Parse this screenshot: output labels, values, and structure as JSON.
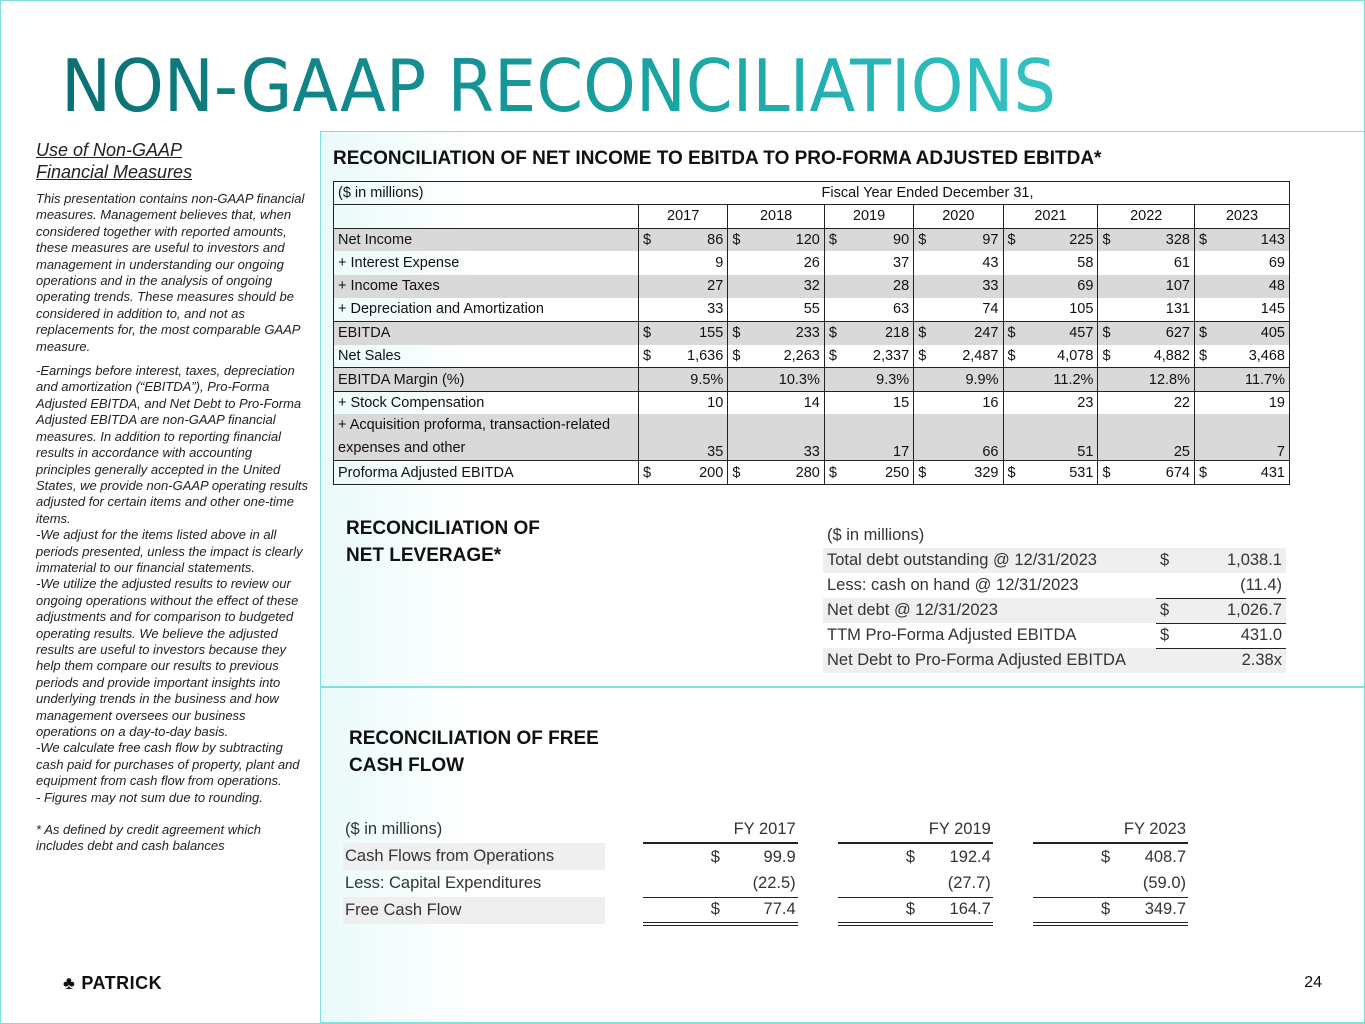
{
  "title": "NON-GAAP RECONCILIATIONS",
  "left": {
    "heading_1": "Use of Non-GAAP",
    "heading_2": "Financial Measures",
    "para1": "This presentation contains non-GAAP financial measures. Management believes that, when considered together with reported amounts, these measures are useful to investors and management in understanding our ongoing operations and in the analysis of ongoing operating trends. These measures should be considered in addition to, and not as replacements for, the most comparable GAAP measure.",
    "para2": "-Earnings before interest, taxes, depreciation and amortization (“EBITDA”), Pro-Forma Adjusted EBITDA, and Net Debt to Pro-Forma Adjusted EBITDA are non-GAAP financial measures. In addition to reporting financial results in accordance with accounting principles generally accepted in the United States, we provide non-GAAP operating results adjusted for certain items and other one-time items.",
    "para3": "-We adjust for the items listed above in all periods presented, unless the impact is clearly immaterial to our financial statements.",
    "para4": "-We utilize the adjusted results to review our ongoing operations without the effect of these adjustments and for comparison to budgeted operating results. We believe the adjusted results are useful to investors because they help them compare our results to previous periods and provide important insights into underlying trends in the business and how management oversees our business operations on a day-to-day basis.",
    "para5": "-We calculate free cash flow by subtracting cash paid for purchases of property, plant and equipment from cash flow from operations.",
    "para6": "- Figures may not sum due to rounding.",
    "para7": "* As defined by credit agreement which includes debt and cash balances"
  },
  "ebitda": {
    "title": "RECONCILIATION OF NET INCOME TO EBITDA TO PRO-FORMA ADJUSTED EBITDA*",
    "units": "($ in millions)",
    "period": "Fiscal Year Ended December 31,",
    "years": [
      "2017",
      "2018",
      "2019",
      "2020",
      "2021",
      "2022",
      "2023"
    ],
    "rows": [
      {
        "label": "Net Income",
        "dollar": true,
        "values": [
          "86",
          "120",
          "90",
          "97",
          "225",
          "328",
          "143"
        ]
      },
      {
        "label": "+ Interest Expense",
        "values": [
          "9",
          "26",
          "37",
          "43",
          "58",
          "61",
          "69"
        ]
      },
      {
        "label": "+ Income Taxes",
        "values": [
          "27",
          "32",
          "28",
          "33",
          "69",
          "107",
          "48"
        ]
      },
      {
        "label": "+ Depreciation and Amortization",
        "values": [
          "33",
          "55",
          "63",
          "74",
          "105",
          "131",
          "145"
        ]
      },
      {
        "label": "EBITDA",
        "dollar": true,
        "values": [
          "155",
          "233",
          "218",
          "247",
          "457",
          "627",
          "405"
        ]
      },
      {
        "label": "Net Sales",
        "dollar": true,
        "values": [
          "1,636",
          "2,263",
          "2,337",
          "2,487",
          "4,078",
          "4,882",
          "3,468"
        ]
      },
      {
        "label": "EBITDA Margin (%)",
        "values": [
          "9.5%",
          "10.3%",
          "9.3%",
          "9.9%",
          "11.2%",
          "12.8%",
          "11.7%"
        ]
      },
      {
        "label": "+ Stock Compensation",
        "values": [
          "10",
          "14",
          "15",
          "16",
          "23",
          "22",
          "19"
        ]
      },
      {
        "label": "+ Acquisition proforma, transaction-related expenses and other",
        "values": [
          "35",
          "33",
          "17",
          "66",
          "51",
          "25",
          "7"
        ]
      },
      {
        "label": "Proforma Adjusted EBITDA",
        "dollar": true,
        "values": [
          "200",
          "280",
          "250",
          "329",
          "531",
          "674",
          "431"
        ]
      }
    ]
  },
  "leverage": {
    "title_1": "RECONCILIATION OF",
    "title_2": "NET LEVERAGE*",
    "units": "($ in millions)",
    "rows": [
      {
        "label": "Total debt outstanding @ 12/31/2023",
        "dollar": "$",
        "value": "1,038.1"
      },
      {
        "label": "Less: cash on hand @ 12/31/2023",
        "dollar": "",
        "value": "(11.4)"
      },
      {
        "label": "Net debt @ 12/31/2023",
        "dollar": "$",
        "value": "1,026.7"
      },
      {
        "label": "TTM Pro-Forma Adjusted EBITDA",
        "dollar": "$",
        "value": "431.0"
      },
      {
        "label": "Net Debt to Pro-Forma Adjusted EBITDA",
        "dollar": "",
        "value": "2.38x"
      }
    ]
  },
  "fcf": {
    "title_1": "RECONCILIATION OF FREE",
    "title_2": "CASH FLOW",
    "units": "($ in millions)",
    "years": [
      "FY 2017",
      "FY 2019",
      "FY 2023"
    ],
    "rows": [
      {
        "label": "Cash Flows from Operations",
        "dollar": "$",
        "values": [
          "99.9",
          "192.4",
          "408.7"
        ]
      },
      {
        "label": "Less: Capital Expenditures",
        "dollar": "",
        "values": [
          "(22.5)",
          "(27.7)",
          "(59.0)"
        ]
      },
      {
        "label": "Free Cash Flow",
        "dollar": "$",
        "values": [
          "77.4",
          "164.7",
          "349.7"
        ]
      }
    ]
  },
  "footer": {
    "logo": "PATRICK",
    "page": "24"
  },
  "colors": {
    "title_start": "#0b6f73",
    "title_end": "#33c3c3",
    "panel_border": "#7fdede"
  }
}
